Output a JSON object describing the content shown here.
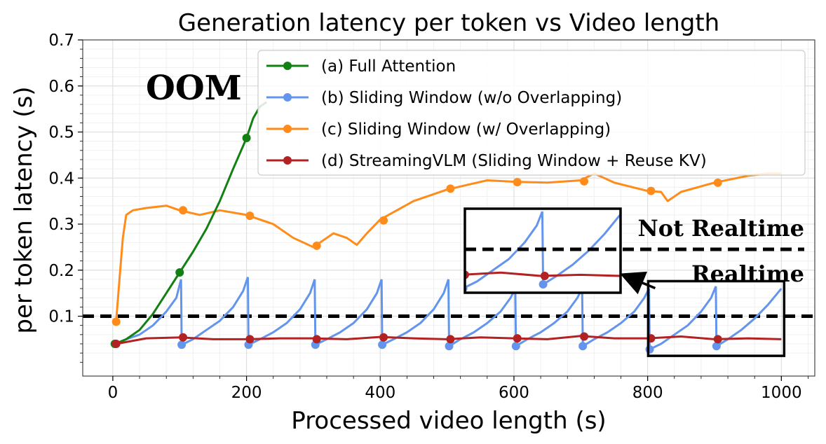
{
  "chart_data": {
    "type": "line",
    "title": "Generation latency per token vs Video length",
    "xlabel": "Processed video length (s)",
    "ylabel": "per token latency (s)",
    "xlim": [
      -45,
      1050
    ],
    "ylim": [
      -0.03,
      0.7
    ],
    "xticks": [
      0,
      200,
      400,
      600,
      800,
      1000
    ],
    "xtick_labels": [
      "0",
      "200",
      "400",
      "600",
      "800",
      "1000"
    ],
    "yticks": [
      0.1,
      0.2,
      0.3,
      0.4,
      0.5,
      0.6,
      0.7
    ],
    "ytick_labels": [
      "0.1",
      "0.2",
      "0.3",
      "0.4",
      "0.5",
      "0.6",
      "0.7"
    ],
    "grid": true,
    "legend_position": "top-right",
    "threshold": {
      "y": 0.1,
      "style": "dashed"
    },
    "series": [
      {
        "name": "(a) Full Attention",
        "color": "#138013",
        "x": [
          3,
          20,
          40,
          60,
          80,
          100,
          120,
          140,
          160,
          180,
          200,
          210,
          220,
          230
        ],
        "y": [
          0.04,
          0.05,
          0.07,
          0.105,
          0.15,
          0.195,
          0.24,
          0.29,
          0.35,
          0.42,
          0.487,
          0.53,
          0.555,
          0.565
        ],
        "markers_x": [
          3,
          100,
          200
        ],
        "markers_y": [
          0.04,
          0.195,
          0.487
        ]
      },
      {
        "name": "(b) Sliding Window (w/o Overlapping)",
        "color": "#6495ED",
        "segments": [
          {
            "x": [
              5,
              20,
              40,
              60,
              80,
              95,
              102
            ],
            "y": [
              0.04,
              0.05,
              0.06,
              0.08,
              0.11,
              0.14,
              0.18
            ]
          },
          {
            "x": [
              102,
              103,
              120,
              140,
              160,
              180,
              195,
              202
            ],
            "y": [
              0.18,
              0.038,
              0.05,
              0.07,
              0.09,
              0.12,
              0.155,
              0.185
            ]
          },
          {
            "x": [
              202,
              203,
              220,
              240,
              260,
              280,
              295,
              302
            ],
            "y": [
              0.185,
              0.038,
              0.05,
              0.065,
              0.085,
              0.115,
              0.15,
              0.18
            ]
          },
          {
            "x": [
              302,
              303,
              320,
              340,
              360,
              380,
              395,
              402
            ],
            "y": [
              0.18,
              0.038,
              0.05,
              0.065,
              0.085,
              0.115,
              0.15,
              0.18
            ]
          },
          {
            "x": [
              402,
              403,
              420,
              440,
              460,
              480,
              495,
              502
            ],
            "y": [
              0.18,
              0.038,
              0.05,
              0.065,
              0.085,
              0.115,
              0.15,
              0.18
            ]
          },
          {
            "x": [
              502,
              503,
              520,
              540,
              560,
              580,
              595,
              602
            ],
            "y": [
              0.18,
              0.035,
              0.05,
              0.065,
              0.085,
              0.11,
              0.14,
              0.16
            ]
          },
          {
            "x": [
              602,
              603,
              620,
              640,
              660,
              680,
              695,
              702
            ],
            "y": [
              0.16,
              0.035,
              0.05,
              0.065,
              0.085,
              0.11,
              0.14,
              0.16
            ]
          },
          {
            "x": [
              702,
              703,
              720,
              740,
              760,
              780,
              795,
              802
            ],
            "y": [
              0.16,
              0.035,
              0.05,
              0.065,
              0.085,
              0.11,
              0.14,
              0.16
            ]
          },
          {
            "x": [
              802,
              803,
              820,
              840,
              860,
              880,
              895,
              902
            ],
            "y": [
              0.16,
              0.028,
              0.04,
              0.06,
              0.08,
              0.11,
              0.14,
              0.165
            ]
          },
          {
            "x": [
              902,
              903,
              920,
              940,
              960,
              980,
              1000
            ],
            "y": [
              0.165,
              0.035,
              0.05,
              0.07,
              0.095,
              0.125,
              0.16
            ]
          }
        ],
        "markers_x": [
          103,
          203,
          303,
          403,
          503,
          603,
          703,
          803,
          903
        ],
        "markers_y": [
          0.038,
          0.038,
          0.038,
          0.038,
          0.035,
          0.035,
          0.035,
          0.028,
          0.035
        ]
      },
      {
        "name": "(c) Sliding Window (w/ Overlapping)",
        "color": "#FF8C1A",
        "x": [
          5,
          10,
          15,
          20,
          30,
          50,
          80,
          100,
          130,
          160,
          200,
          240,
          270,
          300,
          330,
          350,
          365,
          380,
          400,
          450,
          500,
          530,
          560,
          600,
          650,
          700,
          720,
          750,
          800,
          820,
          830,
          850,
          900,
          950,
          980,
          1000
        ],
        "y": [
          0.09,
          0.18,
          0.27,
          0.32,
          0.33,
          0.335,
          0.34,
          0.33,
          0.32,
          0.33,
          0.32,
          0.3,
          0.27,
          0.25,
          0.28,
          0.27,
          0.255,
          0.28,
          0.31,
          0.35,
          0.375,
          0.385,
          0.395,
          0.392,
          0.39,
          0.395,
          0.41,
          0.39,
          0.372,
          0.37,
          0.35,
          0.37,
          0.39,
          0.405,
          0.41,
          0.41
        ],
        "markers_x": [
          5,
          105,
          205,
          305,
          405,
          505,
          605,
          705,
          805,
          905
        ],
        "markers_y": [
          0.088,
          0.33,
          0.318,
          0.253,
          0.308,
          0.377,
          0.391,
          0.393,
          0.372,
          0.39
        ]
      },
      {
        "name": "(d) StreamingVLM (Sliding Window + Reuse KV)",
        "color": "#B22222",
        "x": [
          5,
          50,
          100,
          150,
          200,
          250,
          300,
          350,
          400,
          450,
          500,
          550,
          600,
          650,
          700,
          750,
          800,
          850,
          900,
          950,
          1000
        ],
        "y": [
          0.04,
          0.052,
          0.054,
          0.05,
          0.05,
          0.052,
          0.052,
          0.05,
          0.055,
          0.052,
          0.05,
          0.054,
          0.052,
          0.05,
          0.057,
          0.052,
          0.052,
          0.056,
          0.05,
          0.052,
          0.05
        ],
        "markers_x": [
          5,
          105,
          205,
          305,
          405,
          505,
          605,
          705,
          805,
          905
        ],
        "markers_y": [
          0.04,
          0.054,
          0.05,
          0.05,
          0.054,
          0.05,
          0.052,
          0.056,
          0.052,
          0.05
        ]
      }
    ],
    "annotations": {
      "oom": "OOM",
      "not_realtime": "Not Realtime",
      "realtime": "Realtime"
    },
    "zoom_box": {
      "x": [
        805,
        1000
      ],
      "y": [
        0.02,
        0.17
      ]
    }
  }
}
